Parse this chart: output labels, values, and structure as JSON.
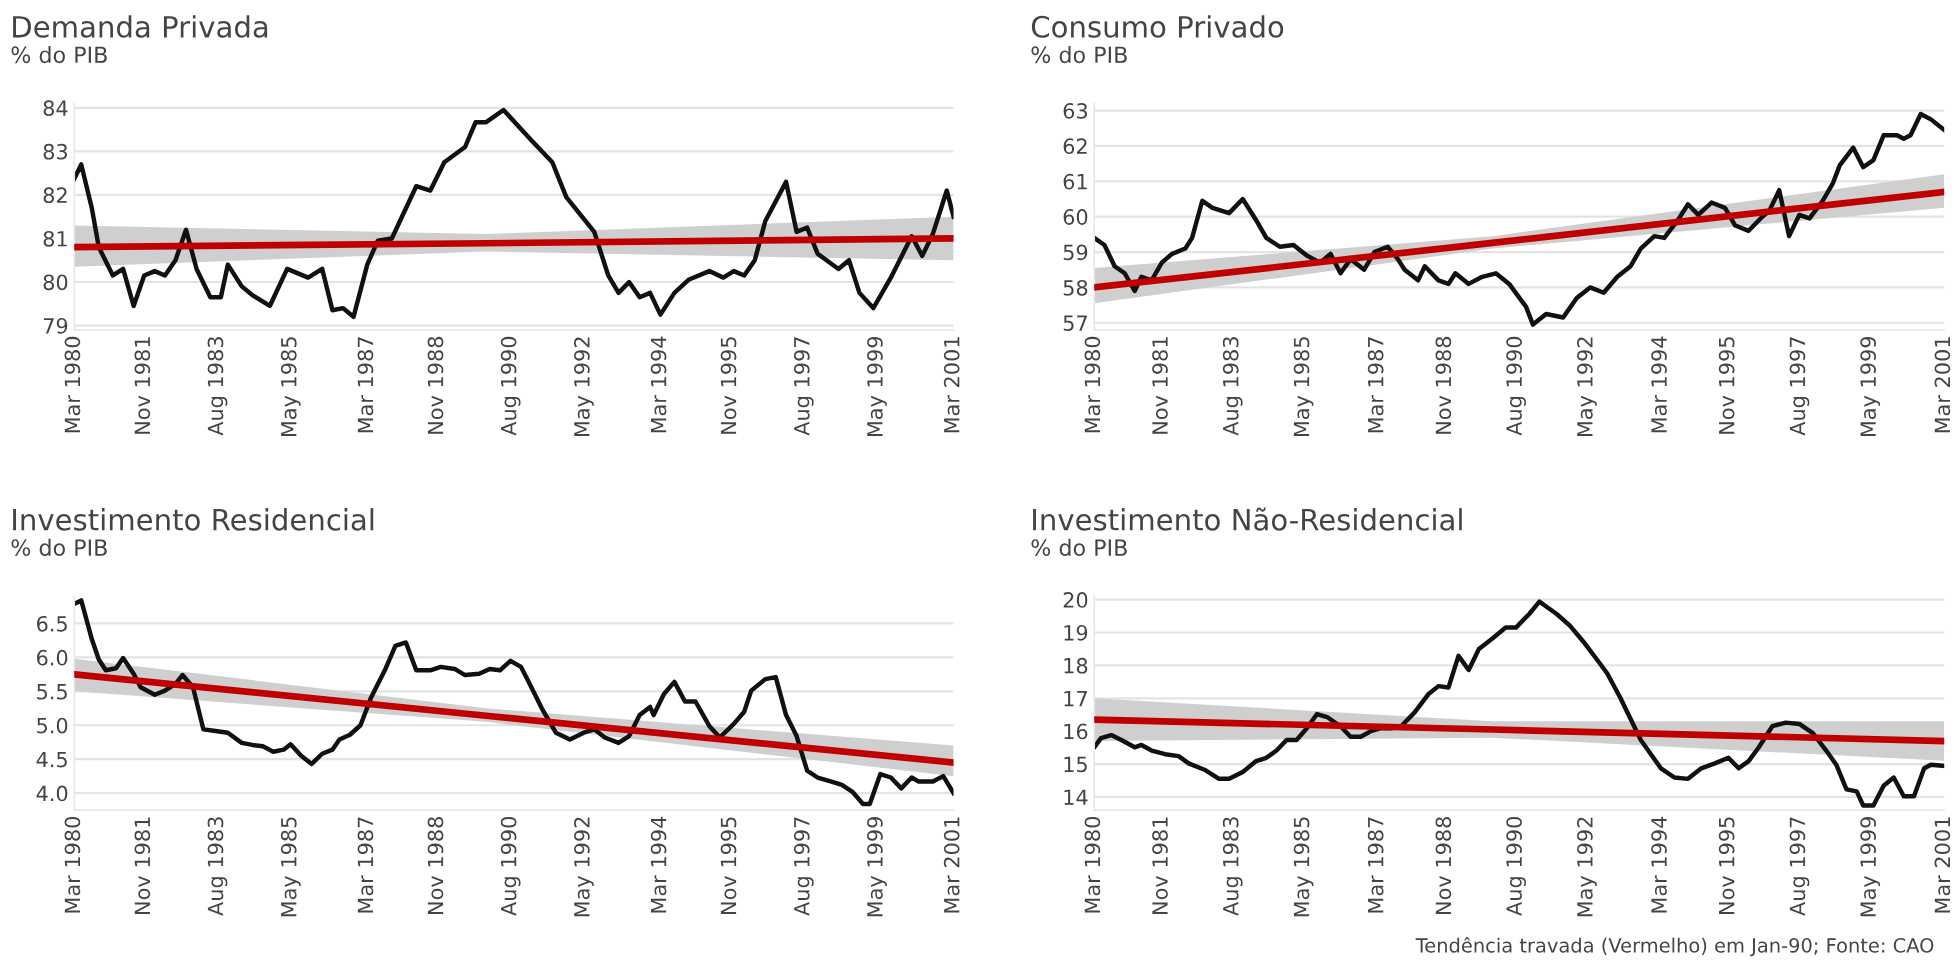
{
  "chart_data": [
    {
      "type": "line",
      "title": "Demanda Privada",
      "subtitle": "% do PIB",
      "grid": "y",
      "xlim": [
        "1980-03",
        "2001-03"
      ],
      "ylim": [
        78.9,
        84.1
      ],
      "yticks": [
        79,
        80,
        81,
        82,
        83,
        84
      ],
      "xticks": [
        {
          "value": "1980-03",
          "label": "Mar 1980"
        },
        {
          "value": "1981-11",
          "label": "Nov 1981"
        },
        {
          "value": "1983-08",
          "label": "Aug 1983"
        },
        {
          "value": "1985-05",
          "label": "May 1985"
        },
        {
          "value": "1987-03",
          "label": "Mar 1987"
        },
        {
          "value": "1988-11",
          "label": "Nov 1988"
        },
        {
          "value": "1990-08",
          "label": "Aug 1990"
        },
        {
          "value": "1992-05",
          "label": "May 1992"
        },
        {
          "value": "1994-03",
          "label": "Mar 1994"
        },
        {
          "value": "1995-11",
          "label": "Nov 1995"
        },
        {
          "value": "1997-08",
          "label": "Aug 1997"
        },
        {
          "value": "1999-05",
          "label": "May 1999"
        },
        {
          "value": "2001-03",
          "label": "Mar 2001"
        }
      ],
      "series": [
        {
          "type": "line",
          "color": "#111111",
          "x": [
            "1980-03",
            "1980-05",
            "1980-08",
            "1980-10",
            "1981-02",
            "1981-05",
            "1981-08",
            "1981-11",
            "1982-02",
            "1982-05",
            "1982-08",
            "1982-11",
            "1983-02",
            "1983-06",
            "1983-09",
            "1983-11",
            "1984-03",
            "1984-06",
            "1984-11",
            "1985-04",
            "1985-10",
            "1986-02",
            "1986-05",
            "1986-08",
            "1986-11",
            "1987-03",
            "1987-06",
            "1987-10",
            "1988-05",
            "1988-09",
            "1989-01",
            "1989-07",
            "1989-10",
            "1990-01",
            "1990-06",
            "1991-02",
            "1991-08",
            "1991-12",
            "1992-08",
            "1992-12",
            "1993-03",
            "1993-06",
            "1993-09",
            "1993-12",
            "1994-03",
            "1994-07",
            "1994-11",
            "1995-05",
            "1995-09",
            "1995-12",
            "1996-03",
            "1996-06",
            "1996-09",
            "1997-03",
            "1997-06",
            "1997-09",
            "1997-12",
            "1998-06",
            "1998-09",
            "1998-12",
            "1999-04",
            "1999-09",
            "2000-03",
            "2000-06",
            "2000-09",
            "2001-01",
            "2001-03"
          ],
          "values": [
            82.37,
            82.7,
            81.7,
            80.8,
            80.15,
            80.3,
            79.45,
            80.15,
            80.25,
            80.15,
            80.5,
            81.2,
            80.3,
            79.65,
            79.65,
            80.4,
            79.9,
            79.7,
            79.45,
            80.3,
            80.1,
            80.3,
            79.35,
            79.4,
            79.2,
            80.4,
            80.95,
            81.0,
            82.2,
            82.1,
            82.75,
            83.1,
            83.67,
            83.67,
            83.95,
            83.25,
            82.75,
            81.95,
            81.15,
            80.15,
            79.75,
            80.0,
            79.65,
            79.75,
            79.25,
            79.75,
            80.05,
            80.25,
            80.1,
            80.25,
            80.15,
            80.5,
            81.4,
            82.3,
            81.15,
            81.25,
            80.65,
            80.3,
            80.5,
            79.75,
            79.4,
            80.1,
            81.05,
            80.6,
            81.1,
            82.1,
            81.5
          ]
        },
        {
          "type": "line",
          "color": "#c00000",
          "x": [
            "1980-03",
            "1990-01",
            "2001-03"
          ],
          "values": [
            80.8,
            80.89,
            81.0
          ],
          "lower": [
            80.35,
            80.7,
            80.5
          ],
          "upper": [
            81.3,
            81.1,
            81.5
          ]
        }
      ]
    },
    {
      "type": "line",
      "title": "Consumo Privado",
      "subtitle": "% do PIB",
      "grid": "y",
      "xlim": [
        "1980-03",
        "2001-03"
      ],
      "ylim": [
        56.8,
        63.2
      ],
      "yticks": [
        57,
        58,
        59,
        60,
        61,
        62,
        63
      ],
      "xticks": [
        {
          "value": "1980-03",
          "label": "Mar 1980"
        },
        {
          "value": "1981-11",
          "label": "Nov 1981"
        },
        {
          "value": "1983-08",
          "label": "Aug 1983"
        },
        {
          "value": "1985-05",
          "label": "May 1985"
        },
        {
          "value": "1987-03",
          "label": "Mar 1987"
        },
        {
          "value": "1988-11",
          "label": "Nov 1988"
        },
        {
          "value": "1990-08",
          "label": "Aug 1990"
        },
        {
          "value": "1992-05",
          "label": "May 1992"
        },
        {
          "value": "1994-03",
          "label": "Mar 1994"
        },
        {
          "value": "1995-11",
          "label": "Nov 1995"
        },
        {
          "value": "1997-08",
          "label": "Aug 1997"
        },
        {
          "value": "1999-05",
          "label": "May 1999"
        },
        {
          "value": "2001-03",
          "label": "Mar 2001"
        }
      ],
      "series": [
        {
          "type": "line",
          "color": "#111111",
          "x": [
            "1980-03",
            "1980-06",
            "1980-09",
            "1980-12",
            "1981-03",
            "1981-05",
            "1981-08",
            "1981-11",
            "1982-02",
            "1982-06",
            "1982-08",
            "1982-11",
            "1983-02",
            "1983-07",
            "1983-11",
            "1984-03",
            "1984-06",
            "1984-10",
            "1985-02",
            "1985-06",
            "1985-10",
            "1986-01",
            "1986-04",
            "1986-07",
            "1986-11",
            "1987-02",
            "1987-06",
            "1987-09",
            "1987-11",
            "1988-03",
            "1988-05",
            "1988-09",
            "1988-12",
            "1989-02",
            "1989-06",
            "1989-10",
            "1990-02",
            "1990-06",
            "1990-11",
            "1991-01",
            "1991-05",
            "1991-10",
            "1992-02",
            "1992-06",
            "1992-10",
            "1993-02",
            "1993-06",
            "1993-09",
            "1994-01",
            "1994-04",
            "1994-08",
            "1994-11",
            "1995-02",
            "1995-06",
            "1995-10",
            "1996-01",
            "1996-05",
            "1996-09",
            "1996-11",
            "1997-02",
            "1997-05",
            "1997-08",
            "1997-11",
            "1998-03",
            "1998-06",
            "1998-08",
            "1998-12",
            "1999-03",
            "1999-06",
            "1999-09",
            "2000-01",
            "2000-03",
            "2000-05",
            "2000-08",
            "2000-11",
            "2001-03"
          ],
          "values": [
            59.4,
            59.2,
            58.6,
            58.4,
            57.9,
            58.3,
            58.2,
            58.7,
            58.95,
            59.1,
            59.4,
            60.45,
            60.25,
            60.1,
            60.5,
            59.9,
            59.4,
            59.15,
            59.2,
            58.9,
            58.7,
            58.95,
            58.4,
            58.8,
            58.5,
            59.0,
            59.15,
            58.8,
            58.5,
            58.2,
            58.6,
            58.2,
            58.1,
            58.4,
            58.1,
            58.3,
            58.4,
            58.1,
            57.45,
            56.95,
            57.25,
            57.15,
            57.7,
            58.0,
            57.85,
            58.3,
            58.6,
            59.1,
            59.45,
            59.4,
            59.9,
            60.35,
            60.05,
            60.4,
            60.25,
            59.75,
            59.6,
            60.0,
            60.15,
            60.75,
            59.45,
            60.05,
            59.95,
            60.45,
            60.95,
            61.45,
            61.95,
            61.4,
            61.6,
            62.3,
            62.3,
            62.2,
            62.3,
            62.9,
            62.75,
            62.45
          ]
        },
        {
          "type": "line",
          "color": "#c00000",
          "x": [
            "1980-03",
            "1990-01",
            "2001-03"
          ],
          "values": [
            58.0,
            59.26,
            60.7
          ],
          "lower": [
            57.55,
            59.1,
            60.25
          ],
          "upper": [
            58.55,
            59.45,
            61.2
          ]
        }
      ]
    },
    {
      "type": "line",
      "title": "Investimento Residencial",
      "subtitle": "% do PIB",
      "grid": "y",
      "xlim": [
        "1980-03",
        "2001-03"
      ],
      "ylim": [
        3.75,
        6.9
      ],
      "yticks": [
        {
          "value": 4,
          "label": "4.0"
        },
        4.5,
        {
          "value": 5,
          "label": "5.0"
        },
        5.5,
        {
          "value": 6,
          "label": "6.0"
        },
        6.5
      ],
      "xticks": [
        {
          "value": "1980-03",
          "label": "Mar 1980"
        },
        {
          "value": "1981-11",
          "label": "Nov 1981"
        },
        {
          "value": "1983-08",
          "label": "Aug 1983"
        },
        {
          "value": "1985-05",
          "label": "May 1985"
        },
        {
          "value": "1987-03",
          "label": "Mar 1987"
        },
        {
          "value": "1988-11",
          "label": "Nov 1988"
        },
        {
          "value": "1990-08",
          "label": "Aug 1990"
        },
        {
          "value": "1992-05",
          "label": "May 1992"
        },
        {
          "value": "1994-03",
          "label": "Mar 1994"
        },
        {
          "value": "1995-11",
          "label": "Nov 1995"
        },
        {
          "value": "1997-08",
          "label": "Aug 1997"
        },
        {
          "value": "1999-05",
          "label": "May 1999"
        },
        {
          "value": "2001-03",
          "label": "Mar 2001"
        }
      ],
      "series": [
        {
          "type": "line",
          "color": "#111111",
          "x": [
            "1980-03",
            "1980-05",
            "1980-08",
            "1980-10",
            "1980-12",
            "1981-03",
            "1981-05",
            "1981-08",
            "1981-10",
            "1982-02",
            "1982-05",
            "1982-08",
            "1982-10",
            "1983-01",
            "1983-04",
            "1983-07",
            "1983-11",
            "1984-03",
            "1984-06",
            "1984-09",
            "1984-12",
            "1985-03",
            "1985-05",
            "1985-08",
            "1985-11",
            "1986-02",
            "1986-05",
            "1986-07",
            "1986-10",
            "1987-01",
            "1987-04",
            "1987-08",
            "1987-11",
            "1988-02",
            "1988-05",
            "1988-09",
            "1988-12",
            "1989-04",
            "1989-07",
            "1989-11",
            "1990-02",
            "1990-05",
            "1990-08",
            "1990-11",
            "1991-01",
            "1991-05",
            "1991-09",
            "1992-01",
            "1992-05",
            "1992-08",
            "1992-11",
            "1993-03",
            "1993-06",
            "1993-09",
            "1993-12",
            "1994-01",
            "1994-04",
            "1994-07",
            "1994-10",
            "1995-01",
            "1995-05",
            "1995-08",
            "1995-12",
            "1996-03",
            "1996-05",
            "1996-09",
            "1996-12",
            "1997-03",
            "1997-06",
            "1997-09",
            "1997-12",
            "1998-04",
            "1998-07",
            "1998-10",
            "1999-01",
            "1999-03",
            "1999-06",
            "1999-09",
            "1999-12",
            "2000-03",
            "2000-05",
            "2000-09",
            "2000-12",
            "2001-03"
          ],
          "values": [
            6.79,
            6.84,
            6.27,
            5.97,
            5.81,
            5.84,
            5.99,
            5.76,
            5.56,
            5.45,
            5.51,
            5.61,
            5.74,
            5.56,
            4.94,
            4.92,
            4.89,
            4.74,
            4.71,
            4.69,
            4.61,
            4.64,
            4.72,
            4.55,
            4.43,
            4.58,
            4.64,
            4.79,
            4.86,
            5.0,
            5.4,
            5.81,
            6.17,
            6.22,
            5.81,
            5.81,
            5.86,
            5.83,
            5.74,
            5.76,
            5.83,
            5.81,
            5.95,
            5.86,
            5.66,
            5.25,
            4.89,
            4.79,
            4.89,
            4.94,
            4.82,
            4.74,
            4.84,
            5.15,
            5.27,
            5.15,
            5.46,
            5.64,
            5.35,
            5.35,
            4.99,
            4.82,
            5.02,
            5.2,
            5.51,
            5.68,
            5.71,
            5.15,
            4.84,
            4.33,
            4.23,
            4.17,
            4.12,
            4.02,
            3.84,
            3.84,
            4.28,
            4.23,
            4.07,
            4.23,
            4.17,
            4.17,
            4.25,
            4.0
          ]
        },
        {
          "type": "line",
          "color": "#c00000",
          "x": [
            "1980-03",
            "1990-01",
            "2001-03"
          ],
          "values": [
            5.75,
            5.14,
            4.45
          ],
          "lower": [
            5.5,
            5.05,
            4.25
          ],
          "upper": [
            5.98,
            5.25,
            4.7
          ]
        }
      ]
    },
    {
      "type": "line",
      "title": "Investimento Não-Residencial",
      "subtitle": "% do PIB",
      "grid": "y",
      "xlim": [
        "1980-03",
        "2001-03"
      ],
      "ylim": [
        13.6,
        20.1
      ],
      "yticks": [
        14,
        15,
        16,
        17,
        18,
        19,
        20
      ],
      "xticks": [
        {
          "value": "1980-03",
          "label": "Mar 1980"
        },
        {
          "value": "1981-11",
          "label": "Nov 1981"
        },
        {
          "value": "1983-08",
          "label": "Aug 1983"
        },
        {
          "value": "1985-05",
          "label": "May 1985"
        },
        {
          "value": "1987-03",
          "label": "Mar 1987"
        },
        {
          "value": "1988-11",
          "label": "Nov 1988"
        },
        {
          "value": "1990-08",
          "label": "Aug 1990"
        },
        {
          "value": "1992-05",
          "label": "May 1992"
        },
        {
          "value": "1994-03",
          "label": "Mar 1994"
        },
        {
          "value": "1995-11",
          "label": "Nov 1995"
        },
        {
          "value": "1997-08",
          "label": "Aug 1997"
        },
        {
          "value": "1999-05",
          "label": "May 1999"
        },
        {
          "value": "2001-03",
          "label": "Mar 2001"
        }
      ],
      "annotations": [
        "Tendência travada (Vermelho) em Jan-90; Fonte: CAO"
      ],
      "series": [
        {
          "type": "line",
          "color": "#111111",
          "x": [
            "1980-03",
            "1980-05",
            "1980-08",
            "1980-11",
            "1981-03",
            "1981-05",
            "1981-08",
            "1981-12",
            "1982-04",
            "1982-07",
            "1982-12",
            "1983-04",
            "1983-07",
            "1983-11",
            "1984-03",
            "1984-06",
            "1984-09",
            "1984-12",
            "1985-03",
            "1985-06",
            "1985-09",
            "1985-12",
            "1986-04",
            "1986-07",
            "1986-10",
            "1987-01",
            "1987-04",
            "1987-07",
            "1987-10",
            "1988-02",
            "1988-06",
            "1988-09",
            "1988-12",
            "1989-03",
            "1989-06",
            "1989-09",
            "1990-01",
            "1990-05",
            "1990-08",
            "1990-12",
            "1991-03",
            "1991-05",
            "1991-08",
            "1991-12",
            "1992-04",
            "1992-08",
            "1992-11",
            "1993-03",
            "1993-06",
            "1993-09",
            "1993-12",
            "1994-03",
            "1994-07",
            "1994-11",
            "1995-03",
            "1995-07",
            "1995-11",
            "1996-02",
            "1996-05",
            "1996-08",
            "1996-12",
            "1997-04",
            "1997-08",
            "1997-12",
            "1998-04",
            "1998-07",
            "1998-10",
            "1999-01",
            "1999-03",
            "1999-06",
            "1999-09",
            "1999-12",
            "2000-03",
            "2000-06",
            "2000-09",
            "2000-11",
            "2001-03"
          ],
          "values": [
            15.51,
            15.79,
            15.88,
            15.73,
            15.51,
            15.58,
            15.41,
            15.3,
            15.24,
            15.02,
            14.81,
            14.55,
            14.55,
            14.76,
            15.09,
            15.19,
            15.41,
            15.73,
            15.73,
            16.09,
            16.52,
            16.43,
            16.15,
            15.83,
            15.83,
            16.0,
            16.09,
            16.09,
            16.15,
            16.58,
            17.12,
            17.37,
            17.33,
            18.29,
            17.86,
            18.5,
            18.82,
            19.15,
            19.15,
            19.57,
            19.94,
            19.79,
            19.57,
            19.21,
            18.72,
            18.18,
            17.76,
            17.01,
            16.37,
            15.73,
            15.3,
            14.87,
            14.59,
            14.55,
            14.87,
            15.02,
            15.19,
            14.87,
            15.09,
            15.51,
            16.15,
            16.26,
            16.22,
            15.94,
            15.41,
            14.98,
            14.23,
            14.17,
            13.74,
            13.74,
            14.34,
            14.59,
            14.02,
            14.02,
            14.87,
            14.98,
            14.94
          ]
        },
        {
          "type": "line",
          "color": "#c00000",
          "x": [
            "1980-03",
            "1990-01",
            "2001-03"
          ],
          "values": [
            16.35,
            16.05,
            15.7
          ],
          "lower": [
            15.7,
            15.8,
            15.1
          ],
          "upper": [
            17.0,
            16.3,
            16.3
          ]
        }
      ]
    }
  ]
}
